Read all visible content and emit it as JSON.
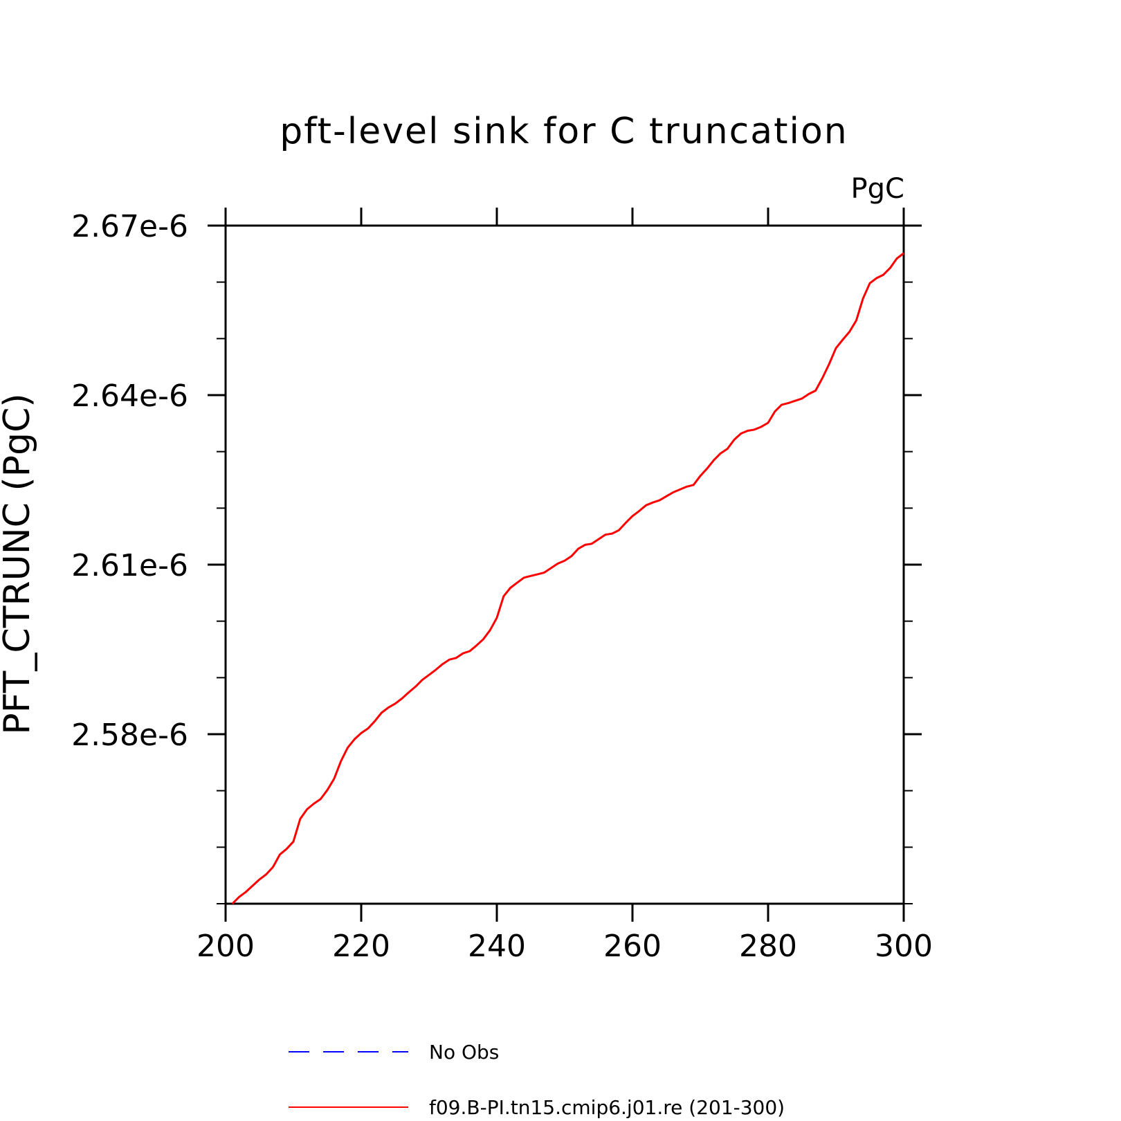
{
  "chart_data": {
    "type": "line",
    "title": "pft-level sink for C truncation",
    "units_label": "PgC",
    "xlabel": "",
    "ylabel": "PFT_CTRUNC (PgC)",
    "xlim": [
      200,
      300
    ],
    "ylim": [
      2.55e-06,
      2.67e-06
    ],
    "x_ticks": [
      200,
      220,
      240,
      260,
      280,
      300
    ],
    "x_tick_labels": [
      "200",
      "220",
      "240",
      "260",
      "280",
      "300"
    ],
    "y_ticks": [
      2.58e-06,
      2.61e-06,
      2.64e-06,
      2.67e-06
    ],
    "y_tick_labels": [
      "2.58e-6",
      "2.61e-6",
      "2.64e-6",
      "2.67e-6"
    ],
    "y_minor_step": 1e-08,
    "grid": false,
    "legend_position": "bottom-center",
    "series": [
      {
        "name": "No Obs",
        "color": "#0000ff",
        "style": "dashed",
        "x": [],
        "y": []
      },
      {
        "name": "f09.B-PI.tn15.cmip6.j01.re (201-300)",
        "color": "#ff0000",
        "style": "solid",
        "x": [
          201,
          202,
          203,
          204,
          205,
          206,
          207,
          208,
          209,
          210,
          211,
          212,
          213,
          214,
          215,
          216,
          217,
          218,
          219,
          220,
          221,
          222,
          223,
          224,
          225,
          226,
          227,
          228,
          229,
          230,
          231,
          232,
          233,
          234,
          235,
          236,
          237,
          238,
          239,
          240,
          241,
          242,
          243,
          244,
          245,
          246,
          247,
          248,
          249,
          250,
          251,
          252,
          253,
          254,
          255,
          256,
          257,
          258,
          259,
          260,
          261,
          262,
          263,
          264,
          265,
          266,
          267,
          268,
          269,
          270,
          271,
          272,
          273,
          274,
          275,
          276,
          277,
          278,
          279,
          280,
          281,
          282,
          283,
          284,
          285,
          286,
          287,
          288,
          289,
          290,
          291,
          292,
          293,
          294,
          295,
          296,
          297,
          298,
          299,
          300
        ],
        "y": [
          2.55e-06,
          2.5512e-06,
          2.5521e-06,
          2.5532e-06,
          2.5543e-06,
          2.5552e-06,
          2.5565e-06,
          2.5587e-06,
          2.5597e-06,
          2.561e-06,
          2.565e-06,
          2.5667e-06,
          2.5677e-06,
          2.5685e-06,
          2.5701e-06,
          2.5721e-06,
          2.5752e-06,
          2.5776e-06,
          2.5791e-06,
          2.5802e-06,
          2.581e-06,
          2.5823e-06,
          2.5838e-06,
          2.5847e-06,
          2.5854e-06,
          2.5863e-06,
          2.5874e-06,
          2.5884e-06,
          2.5896e-06,
          2.5905e-06,
          2.5914e-06,
          2.5924e-06,
          2.5932e-06,
          2.5935e-06,
          2.5943e-06,
          2.5947e-06,
          2.5957e-06,
          2.5968e-06,
          2.5984e-06,
          2.6006e-06,
          2.6044e-06,
          2.6059e-06,
          2.6068e-06,
          2.6077e-06,
          2.608e-06,
          2.6083e-06,
          2.6086e-06,
          2.6094e-06,
          2.6102e-06,
          2.6107e-06,
          2.6115e-06,
          2.6128e-06,
          2.6135e-06,
          2.6137e-06,
          2.6145e-06,
          2.6153e-06,
          2.6155e-06,
          2.6161e-06,
          2.6174e-06,
          2.6186e-06,
          2.6195e-06,
          2.6205e-06,
          2.621e-06,
          2.6214e-06,
          2.6221e-06,
          2.6228e-06,
          2.6233e-06,
          2.6238e-06,
          2.6241e-06,
          2.6257e-06,
          2.627e-06,
          2.6285e-06,
          2.6297e-06,
          2.6305e-06,
          2.6321e-06,
          2.6332e-06,
          2.6337e-06,
          2.6339e-06,
          2.6344e-06,
          2.6351e-06,
          2.6371e-06,
          2.6383e-06,
          2.6386e-06,
          2.639e-06,
          2.6394e-06,
          2.6402e-06,
          2.6408e-06,
          2.643e-06,
          2.6455e-06,
          2.6483e-06,
          2.6498e-06,
          2.6512e-06,
          2.6532e-06,
          2.6571e-06,
          2.6598e-06,
          2.6607e-06,
          2.6613e-06,
          2.6625e-06,
          2.6642e-06,
          2.6651e-06
        ]
      }
    ]
  }
}
